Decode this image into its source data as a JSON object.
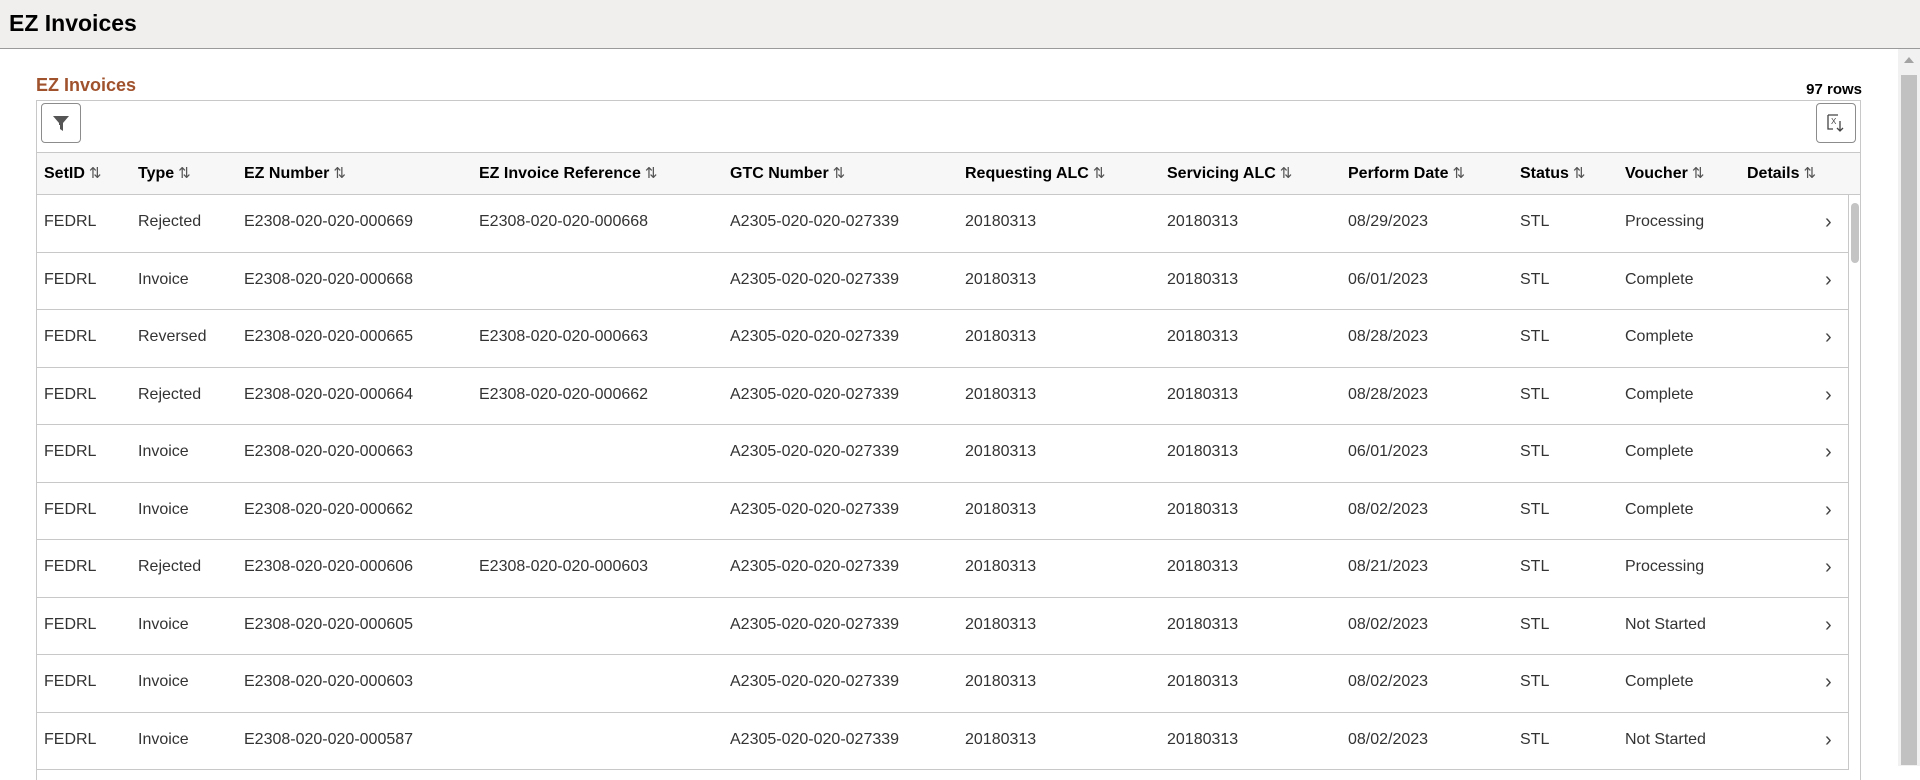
{
  "page": {
    "title": "EZ Invoices"
  },
  "grid": {
    "title": "EZ Invoices",
    "row_count": "97 rows",
    "filter_icon": "filter-icon",
    "export_icon": "excel-export-icon",
    "sort_icon": "⇅",
    "columns": [
      "SetID",
      "Type",
      "EZ Number",
      "EZ Invoice Reference",
      "GTC Number",
      "Requesting ALC",
      "Servicing ALC",
      "Perform Date",
      "Status",
      "Voucher",
      "Details"
    ],
    "rows": [
      [
        "FEDRL",
        "Rejected",
        "E2308-020-020-000669",
        "E2308-020-020-000668",
        "A2305-020-020-027339",
        "20180313",
        "20180313",
        "08/29/2023",
        "STL",
        "Processing"
      ],
      [
        "FEDRL",
        "Invoice",
        "E2308-020-020-000668",
        "",
        "A2305-020-020-027339",
        "20180313",
        "20180313",
        "06/01/2023",
        "STL",
        "Complete"
      ],
      [
        "FEDRL",
        "Reversed",
        "E2308-020-020-000665",
        "E2308-020-020-000663",
        "A2305-020-020-027339",
        "20180313",
        "20180313",
        "08/28/2023",
        "STL",
        "Complete"
      ],
      [
        "FEDRL",
        "Rejected",
        "E2308-020-020-000664",
        "E2308-020-020-000662",
        "A2305-020-020-027339",
        "20180313",
        "20180313",
        "08/28/2023",
        "STL",
        "Complete"
      ],
      [
        "FEDRL",
        "Invoice",
        "E2308-020-020-000663",
        "",
        "A2305-020-020-027339",
        "20180313",
        "20180313",
        "06/01/2023",
        "STL",
        "Complete"
      ],
      [
        "FEDRL",
        "Invoice",
        "E2308-020-020-000662",
        "",
        "A2305-020-020-027339",
        "20180313",
        "20180313",
        "08/02/2023",
        "STL",
        "Complete"
      ],
      [
        "FEDRL",
        "Rejected",
        "E2308-020-020-000606",
        "E2308-020-020-000603",
        "A2305-020-020-027339",
        "20180313",
        "20180313",
        "08/21/2023",
        "STL",
        "Processing"
      ],
      [
        "FEDRL",
        "Invoice",
        "E2308-020-020-000605",
        "",
        "A2305-020-020-027339",
        "20180313",
        "20180313",
        "08/02/2023",
        "STL",
        "Not Started"
      ],
      [
        "FEDRL",
        "Invoice",
        "E2308-020-020-000603",
        "",
        "A2305-020-020-027339",
        "20180313",
        "20180313",
        "08/02/2023",
        "STL",
        "Complete"
      ],
      [
        "FEDRL",
        "Invoice",
        "E2308-020-020-000587",
        "",
        "A2305-020-020-027339",
        "20180313",
        "20180313",
        "08/02/2023",
        "STL",
        "Not Started"
      ]
    ]
  },
  "colors": {
    "accent": "#a0522d",
    "header_bg": "#f0efee"
  }
}
